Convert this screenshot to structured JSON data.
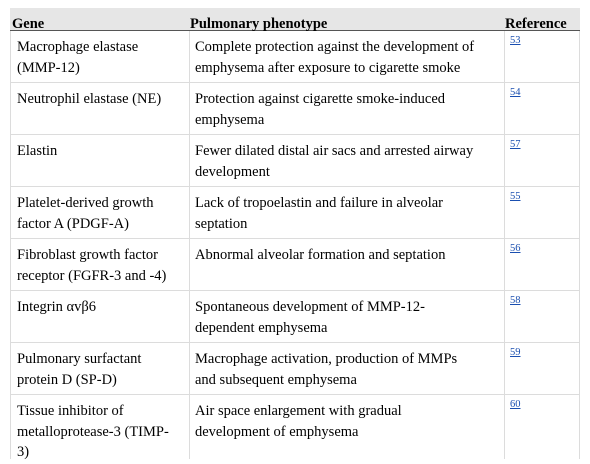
{
  "table": {
    "headers": {
      "gene": "Gene",
      "phenotype": "Pulmonary phenotype",
      "reference": "Reference"
    },
    "rows": [
      {
        "gene": [
          "Macrophage elastase",
          "(MMP-12)"
        ],
        "phenotype": [
          "Complete protection against the development of",
          "emphysema after exposure to cigarette smoke"
        ],
        "reference": "53"
      },
      {
        "gene": [
          "Neutrophil elastase (NE)"
        ],
        "phenotype": [
          "Protection against cigarette smoke-induced",
          "emphysema"
        ],
        "reference": "54"
      },
      {
        "gene": [
          "Elastin"
        ],
        "phenotype": [
          "Fewer dilated distal air sacs and arrested airway",
          "development"
        ],
        "reference": "57"
      },
      {
        "gene": [
          "Platelet-derived growth",
          "factor A (PDGF-A)"
        ],
        "phenotype": [
          "Lack of tropoelastin and failure in alveolar",
          "septation"
        ],
        "reference": "55"
      },
      {
        "gene": [
          "Fibroblast growth factor",
          "receptor (FGFR-3 and -4)"
        ],
        "phenotype": [
          "Abnormal alveolar formation and septation"
        ],
        "reference": "56"
      },
      {
        "gene": [
          "Integrin αvβ6"
        ],
        "phenotype": [
          "Spontaneous development of MMP-12-",
          "dependent emphysema"
        ],
        "reference": "58"
      },
      {
        "gene": [
          "Pulmonary surfactant",
          "protein D (SP-D)"
        ],
        "phenotype": [
          "Macrophage activation, production of MMPs",
          "and subsequent emphysema"
        ],
        "reference": "59"
      },
      {
        "gene": [
          "Tissue inhibitor of",
          "metalloprotease-3 (TIMP-",
          "3)"
        ],
        "phenotype": [
          "Air space enlargement with gradual",
          "development of emphysema"
        ],
        "reference": "60"
      }
    ]
  }
}
